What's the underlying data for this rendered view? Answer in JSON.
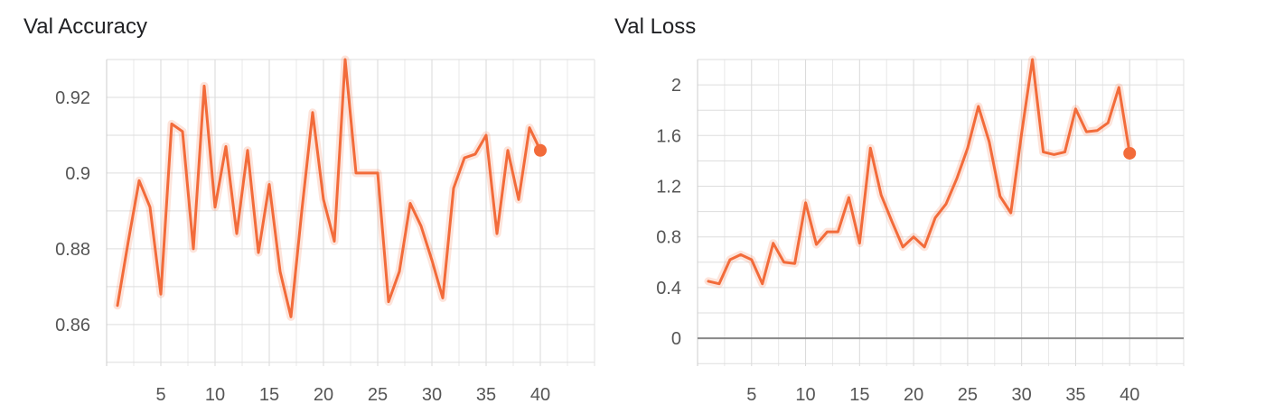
{
  "chart_data": [
    {
      "type": "line",
      "title": "Val Accuracy",
      "xlabel": "",
      "ylabel": "",
      "xlim": [
        0,
        45
      ],
      "ylim": [
        0.849,
        0.93
      ],
      "x_ticks": [
        "5",
        "10",
        "15",
        "20",
        "25",
        "30",
        "35",
        "40"
      ],
      "y_ticks": [
        "0.86",
        "0.88",
        "0.9",
        "0.92"
      ],
      "grid": true,
      "series": [
        {
          "color": "#f26b3a",
          "x": [
            1,
            2,
            3,
            4,
            5,
            6,
            7,
            8,
            9,
            10,
            11,
            12,
            13,
            14,
            15,
            16,
            17,
            18,
            19,
            20,
            21,
            22,
            23,
            24,
            25,
            26,
            27,
            28,
            29,
            30,
            31,
            32,
            33,
            34,
            35,
            36,
            37,
            38,
            39,
            40
          ],
          "y": [
            0.865,
            0.882,
            0.898,
            0.891,
            0.868,
            0.913,
            0.911,
            0.88,
            0.923,
            0.891,
            0.907,
            0.884,
            0.906,
            0.879,
            0.897,
            0.874,
            0.862,
            0.89,
            0.916,
            0.893,
            0.882,
            0.93,
            0.9,
            0.9,
            0.9,
            0.866,
            0.874,
            0.892,
            0.886,
            0.877,
            0.867,
            0.896,
            0.904,
            0.905,
            0.91,
            0.884,
            0.906,
            0.893,
            0.912,
            0.906
          ]
        }
      ]
    },
    {
      "type": "line",
      "title": "Val Loss",
      "xlabel": "",
      "ylabel": "",
      "xlim": [
        0,
        45
      ],
      "ylim": [
        -0.22,
        2.2
      ],
      "x_ticks": [
        "5",
        "10",
        "15",
        "20",
        "25",
        "30",
        "35",
        "40"
      ],
      "y_ticks": [
        "0",
        "0.4",
        "0.8",
        "1.2",
        "1.6",
        "2"
      ],
      "grid": true,
      "series": [
        {
          "color": "#f26b3a",
          "x": [
            1,
            2,
            3,
            4,
            5,
            6,
            7,
            8,
            9,
            10,
            11,
            12,
            13,
            14,
            15,
            16,
            17,
            18,
            19,
            20,
            21,
            22,
            23,
            24,
            25,
            26,
            27,
            28,
            29,
            30,
            31,
            32,
            33,
            34,
            35,
            36,
            37,
            38,
            39,
            40
          ],
          "y": [
            0.45,
            0.43,
            0.62,
            0.66,
            0.62,
            0.43,
            0.75,
            0.6,
            0.59,
            1.07,
            0.74,
            0.84,
            0.84,
            1.11,
            0.75,
            1.5,
            1.13,
            0.92,
            0.72,
            0.8,
            0.72,
            0.95,
            1.06,
            1.26,
            1.5,
            1.83,
            1.55,
            1.12,
            0.99,
            1.62,
            2.2,
            1.47,
            1.45,
            1.47,
            1.81,
            1.63,
            1.64,
            1.7,
            1.98,
            1.46
          ]
        }
      ]
    }
  ]
}
